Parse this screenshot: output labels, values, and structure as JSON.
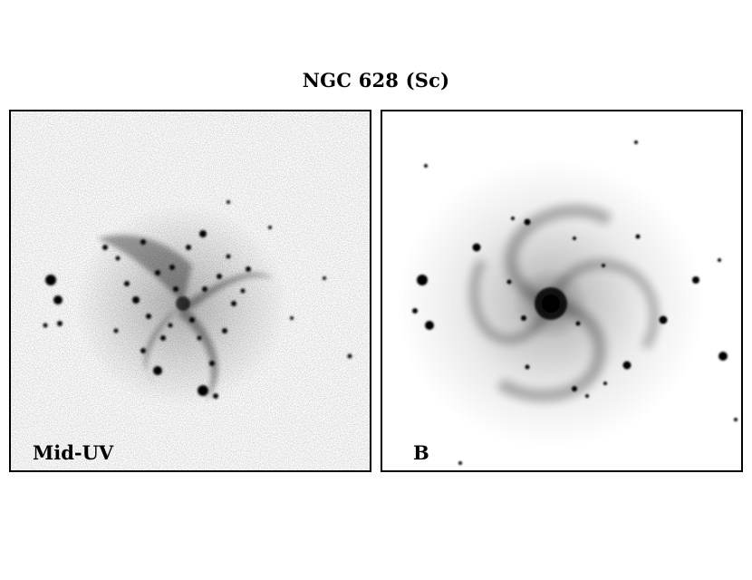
{
  "figure": {
    "title": "NGC 628 (Sc)"
  },
  "panels": [
    {
      "id": "mid-uv",
      "label": "Mid-UV"
    },
    {
      "id": "b-band",
      "label": "B"
    }
  ],
  "colors": {
    "ink": "#000000",
    "background": "#ffffff"
  }
}
